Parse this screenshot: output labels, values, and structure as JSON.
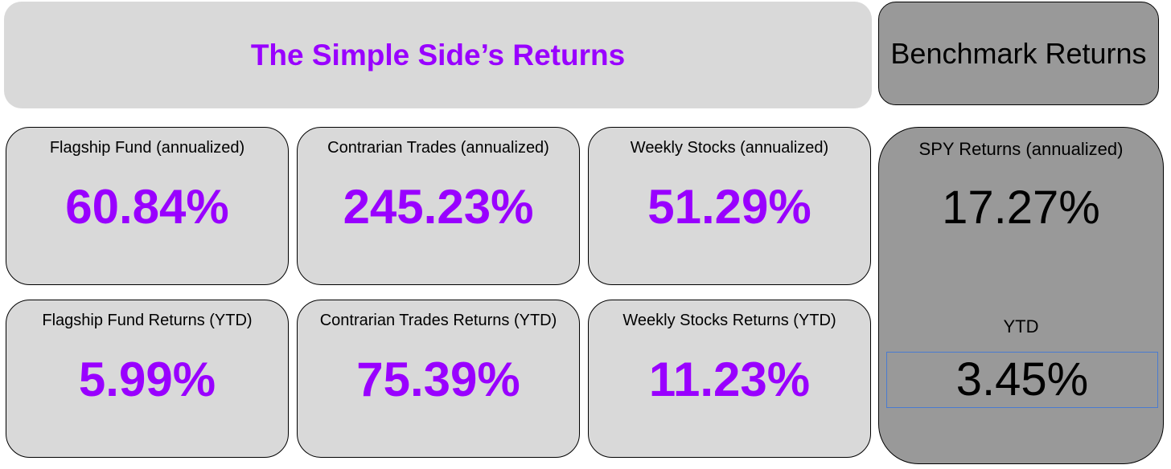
{
  "header": {
    "title": "The Simple Side’s Returns",
    "benchmark_title": "Benchmark Returns"
  },
  "cards": [
    {
      "label": "Flagship Fund (annualized)",
      "value": "60.84%"
    },
    {
      "label": "Contrarian Trades (annualized)",
      "value": "245.23%"
    },
    {
      "label": "Weekly Stocks (annualized)",
      "value": "51.29%"
    },
    {
      "label": "Flagship Fund Returns (YTD)",
      "value": "5.99%"
    },
    {
      "label": "Contrarian Trades Returns (YTD)",
      "value": "75.39%"
    },
    {
      "label": "Weekly Stocks Returns (YTD)",
      "value": "11.23%"
    }
  ],
  "benchmark": {
    "annualized_label": "SPY Returns (annualized)",
    "annualized_value": "17.27%",
    "ytd_label": "YTD",
    "ytd_value": "3.45%"
  }
}
